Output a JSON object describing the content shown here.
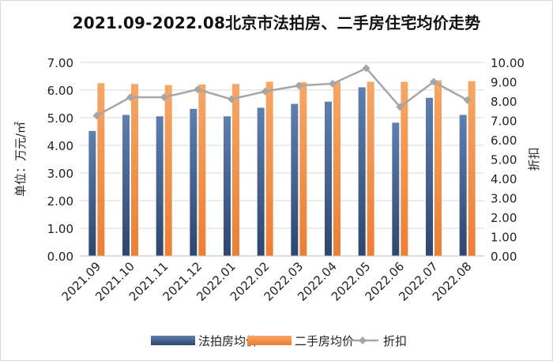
{
  "chart_data": {
    "type": "bar",
    "title": "2021.09-2022.08北京市法拍房、二手房住宅均价走势",
    "categories": [
      "2021.09",
      "2021.10",
      "2021.11",
      "2021.12",
      "2022.01",
      "2022.02",
      "2022.03",
      "2022.04",
      "2022.05",
      "2022.06",
      "2022.07",
      "2022.08"
    ],
    "series": [
      {
        "name": "法拍房均价",
        "type": "bar",
        "axis": "left",
        "color": "#44608F",
        "values": [
          4.52,
          5.1,
          5.05,
          5.32,
          5.05,
          5.36,
          5.5,
          5.58,
          6.1,
          4.82,
          5.72,
          5.1
        ]
      },
      {
        "name": "二手房均价",
        "type": "bar",
        "axis": "left",
        "color": "#F0924A",
        "values": [
          6.25,
          6.22,
          6.18,
          6.2,
          6.22,
          6.3,
          6.28,
          6.3,
          6.3,
          6.3,
          6.35,
          6.32
        ]
      },
      {
        "name": "折扣",
        "type": "line",
        "axis": "right",
        "color": "#A6A6A6",
        "values": [
          7.25,
          8.2,
          8.2,
          8.6,
          8.1,
          8.5,
          8.8,
          8.9,
          9.7,
          7.7,
          9.0,
          8.05
        ]
      }
    ],
    "ylabel_left": "单位：万元/㎡",
    "ylabel_right": "折扣",
    "ylim_left": [
      0,
      7
    ],
    "ylim_right": [
      0,
      10
    ],
    "yticks_left": [
      "0.00",
      "1.00",
      "2.00",
      "3.00",
      "4.00",
      "5.00",
      "6.00",
      "7.00"
    ],
    "yticks_right": [
      "0.00",
      "1.00",
      "2.00",
      "3.00",
      "4.00",
      "5.00",
      "6.00",
      "7.00",
      "8.00",
      "9.00",
      "10.00"
    ],
    "grid": true,
    "legend_position": "bottom"
  }
}
